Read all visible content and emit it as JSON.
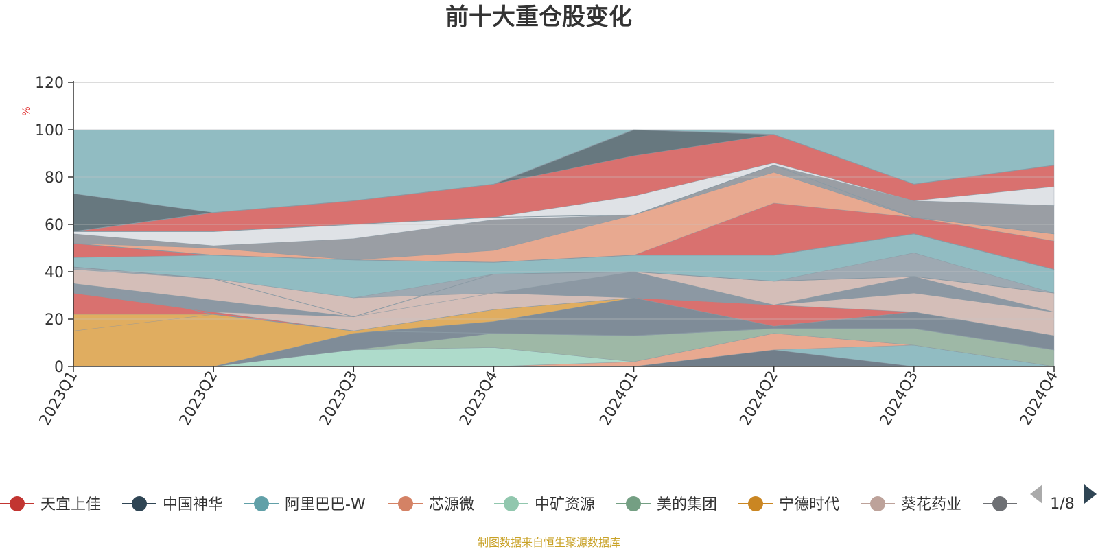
{
  "chart_data": {
    "type": "area",
    "title": "前十大重仓股变化",
    "ylabel": "%",
    "ylim": [
      0,
      120
    ],
    "yticks": [
      "0",
      "20",
      "40",
      "60",
      "80",
      "100",
      "120"
    ],
    "categories": [
      "2023Q1",
      "2023Q2",
      "2023Q3",
      "2023Q4",
      "2024Q1",
      "2024Q2",
      "2024Q3",
      "2024Q4"
    ],
    "grid": true,
    "legend_placement": "bottom",
    "background_color": "#91bcc2",
    "bands": [
      {
        "lower": [
          0,
          0,
          0,
          0,
          0,
          0,
          0,
          0
        ],
        "upper": [
          11,
          0,
          0,
          0,
          0,
          0,
          0,
          0
        ],
        "color": "#d9716f"
      },
      {
        "lower": [
          11,
          0,
          0,
          0,
          0,
          0,
          0,
          0
        ],
        "upper": [
          16,
          10,
          0,
          0,
          0,
          0,
          0,
          0
        ],
        "color": "#e0ad60"
      },
      {
        "lower": [
          16,
          10,
          0,
          0,
          0,
          0,
          0,
          0
        ],
        "upper": [
          23,
          10,
          7,
          0,
          0,
          0,
          0,
          0
        ],
        "color": "#d4beb8"
      },
      {
        "lower": [
          0,
          0,
          0,
          0,
          0,
          0,
          0,
          0
        ],
        "upper": [
          0,
          0,
          0,
          0,
          0,
          7,
          0,
          0
        ],
        "color": "#717e8a"
      },
      {
        "lower": [
          0,
          0,
          0,
          0,
          0,
          7,
          0,
          0
        ],
        "upper": [
          0,
          0,
          0,
          0,
          0,
          7,
          9,
          0
        ],
        "color": "#91bcc2"
      },
      {
        "lower": [
          0,
          0,
          0,
          0,
          0,
          7,
          9,
          0
        ],
        "upper": [
          0,
          0,
          0,
          0,
          2,
          14,
          9,
          0
        ],
        "color": "#e8a990"
      },
      {
        "lower": [
          0,
          0,
          0,
          0,
          2,
          14,
          9,
          0
        ],
        "upper": [
          0,
          0,
          7,
          8,
          2,
          14,
          9,
          0
        ],
        "color": "#aedbcb"
      },
      {
        "lower": [
          0,
          0,
          7,
          8,
          2,
          14,
          9,
          0
        ],
        "upper": [
          0,
          0,
          7,
          14,
          13,
          16,
          16,
          7
        ],
        "color": "#9eb8a6"
      },
      {
        "lower": [
          0,
          0,
          7,
          14,
          13,
          16,
          16,
          7
        ],
        "upper": [
          0,
          0,
          14,
          19,
          29,
          17,
          23,
          13
        ],
        "color": "#7f8c98"
      },
      {
        "lower": [
          0,
          0,
          14,
          19,
          29,
          17,
          23,
          13
        ],
        "upper": [
          31,
          23,
          15,
          24,
          29,
          17,
          23,
          13
        ],
        "color": "#e0ad60"
      },
      {
        "lower": [
          15,
          22,
          15,
          24,
          29,
          17,
          23,
          13
        ],
        "upper": [
          31,
          23,
          15,
          24,
          29,
          26,
          23,
          13
        ],
        "color": "#d9716f"
      },
      {
        "lower": [
          31,
          23,
          15,
          24,
          29,
          26,
          23,
          13
        ],
        "upper": [
          31,
          23,
          21,
          31,
          29,
          26,
          31,
          23
        ],
        "color": "#d4beb8"
      },
      {
        "lower": [
          31,
          23,
          21,
          31,
          29,
          26,
          31,
          23
        ],
        "upper": [
          35,
          28,
          21,
          31,
          40,
          26,
          38,
          23
        ],
        "color": "#8c98a3"
      },
      {
        "lower": [
          35,
          28,
          21,
          31,
          40,
          26,
          38,
          23
        ],
        "upper": [
          41,
          37,
          29,
          31,
          40,
          36,
          38,
          31
        ],
        "color": "#d4beb8"
      },
      {
        "lower": [
          41,
          37,
          29,
          31,
          40,
          36,
          38,
          31
        ],
        "upper": [
          42,
          37,
          29,
          39,
          40,
          36,
          48,
          31
        ],
        "color": "#9ea9b2"
      },
      {
        "lower": [
          42,
          37,
          29,
          39,
          40,
          36,
          48,
          31
        ],
        "upper": [
          46,
          47,
          45,
          44,
          47,
          47,
          56,
          41
        ],
        "color": "#91bcc2"
      },
      {
        "lower": [
          46,
          47,
          45,
          44,
          47,
          47,
          56,
          41
        ],
        "upper": [
          52,
          47,
          45,
          44,
          47,
          69,
          63,
          53
        ],
        "color": "#d9716f"
      },
      {
        "lower": [
          52,
          47,
          45,
          44,
          47,
          69,
          63,
          53
        ],
        "upper": [
          52,
          50,
          45,
          49,
          64,
          82,
          63,
          56
        ],
        "color": "#e8a990"
      },
      {
        "lower": [
          52,
          50,
          45,
          49,
          64,
          82,
          63,
          56
        ],
        "upper": [
          56,
          51,
          54,
          62,
          64,
          85,
          70,
          68
        ],
        "color": "#9a9ea4"
      },
      {
        "lower": [
          56,
          51,
          54,
          62,
          64,
          85,
          70,
          68
        ],
        "upper": [
          57,
          57,
          60,
          63,
          72,
          86,
          70,
          76
        ],
        "color": "#dfe2e6"
      },
      {
        "lower": [
          57,
          57,
          60,
          63,
          72,
          86,
          70,
          76
        ],
        "upper": [
          57,
          65,
          70,
          77,
          89,
          98,
          77,
          85
        ],
        "color": "#d9716f"
      },
      {
        "lower": [
          57,
          65,
          70,
          77,
          89,
          98,
          77,
          85
        ],
        "upper": [
          73,
          65,
          70,
          77,
          100,
          98,
          77,
          85
        ],
        "color": "#67787f"
      },
      {
        "lower": [
          73,
          65,
          70,
          77,
          100,
          98,
          77,
          85
        ],
        "upper": [
          100,
          100,
          100,
          100,
          100,
          100,
          100,
          100
        ],
        "color": "#91bcc2"
      },
      {
        "lower": [
          15,
          22,
          15,
          24,
          29,
          17,
          23,
          13
        ],
        "upper": [
          22,
          22,
          15,
          24,
          29,
          17,
          23,
          13
        ],
        "color": "#e0ad60"
      }
    ],
    "lines": [
      {
        "values": [
          35,
          22,
          15,
          14,
          13,
          16,
          16,
          7
        ],
        "color": "#8a9aa4"
      },
      {
        "values": [
          42,
          37,
          21,
          39,
          40,
          36,
          38,
          31
        ],
        "color": "#8a9aa4"
      },
      {
        "values": [
          52,
          47,
          45,
          44,
          47,
          47,
          56,
          41
        ],
        "color": "#8a9aa4"
      },
      {
        "values": [
          57,
          57,
          60,
          63,
          64,
          85,
          63,
          56
        ],
        "color": "#8a9aa4"
      },
      {
        "values": [
          57,
          65,
          70,
          77,
          100,
          98,
          77,
          85
        ],
        "color": "#8a9aa4"
      }
    ],
    "series_legend": [
      {
        "name": "天宜上佳",
        "color": "#c23531"
      },
      {
        "name": "中国神华",
        "color": "#2f4554"
      },
      {
        "name": "阿里巴巴-W",
        "color": "#61a0a8"
      },
      {
        "name": "芯源微",
        "color": "#d48265"
      },
      {
        "name": "中矿资源",
        "color": "#91c7ae"
      },
      {
        "name": "美的集团",
        "color": "#749f83"
      },
      {
        "name": "宁德时代",
        "color": "#ca8622"
      },
      {
        "name": "葵花药业",
        "color": "#bda29a"
      },
      {
        "name": "",
        "color": "#6e7074"
      }
    ]
  },
  "legend_pager": {
    "page_text": "1/8",
    "prev_color": "#aaaaaa",
    "next_color": "#2f4554"
  },
  "source_note": "制图数据来自恒生聚源数据库"
}
